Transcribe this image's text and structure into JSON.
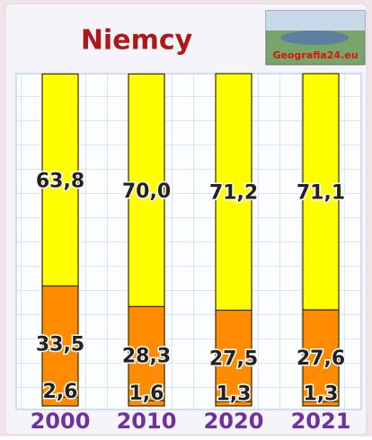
{
  "chart_data": {
    "type": "stacked-bar",
    "title": "Niemcy",
    "categories": [
      "2000",
      "2010",
      "2020",
      "2021"
    ],
    "series": [
      {
        "color": "#ff8c00",
        "values": [
          2.6,
          1.6,
          1.3,
          1.3
        ],
        "value_labels": [
          "2,6",
          "1,6",
          "1,3",
          "1,3"
        ]
      },
      {
        "color": "#ff8c00",
        "values": [
          33.5,
          28.3,
          27.5,
          27.6
        ],
        "value_labels": [
          "33,5",
          "28,3",
          "27,5",
          "27,6"
        ]
      },
      {
        "color": "#ffff00",
        "values": [
          63.8,
          70.0,
          71.2,
          71.1
        ],
        "value_labels": [
          "63,8",
          "70,0",
          "71,2",
          "71,1"
        ]
      }
    ],
    "ylim": [
      0,
      100
    ]
  },
  "logo": "Geografia24.eu"
}
